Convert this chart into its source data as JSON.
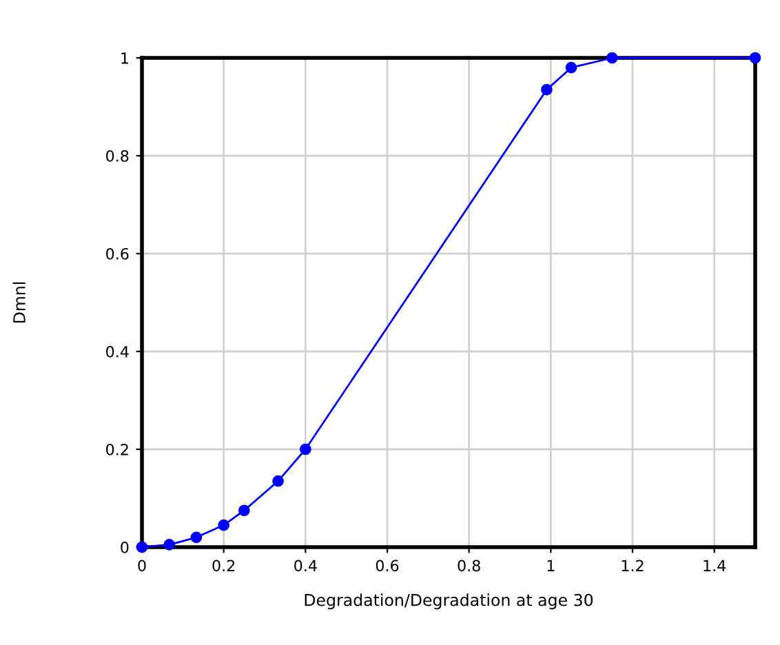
{
  "chart_data": {
    "type": "line",
    "xlabel": "Degradation/Degradation at age 30",
    "ylabel": "Dmnl",
    "x": [
      0,
      0.067,
      0.133,
      0.2,
      0.25,
      0.333,
      0.4,
      0.99,
      1.05,
      1.15,
      1.5
    ],
    "series": [
      {
        "color": "#0000ff",
        "values": [
          0,
          0.005,
          0.02,
          0.045,
          0.075,
          0.135,
          0.2,
          0.935,
          0.98,
          1,
          1
        ]
      }
    ],
    "xlim": [
      0,
      1.5
    ],
    "ylim": [
      0,
      1
    ],
    "xticks": [
      0,
      0.2,
      0.4,
      0.6,
      0.8,
      1,
      1.2,
      1.4
    ],
    "yticks": [
      0,
      0.2,
      0.4,
      0.6,
      0.8,
      1
    ],
    "grid": true,
    "marker": "circle",
    "line_style": "solid"
  }
}
